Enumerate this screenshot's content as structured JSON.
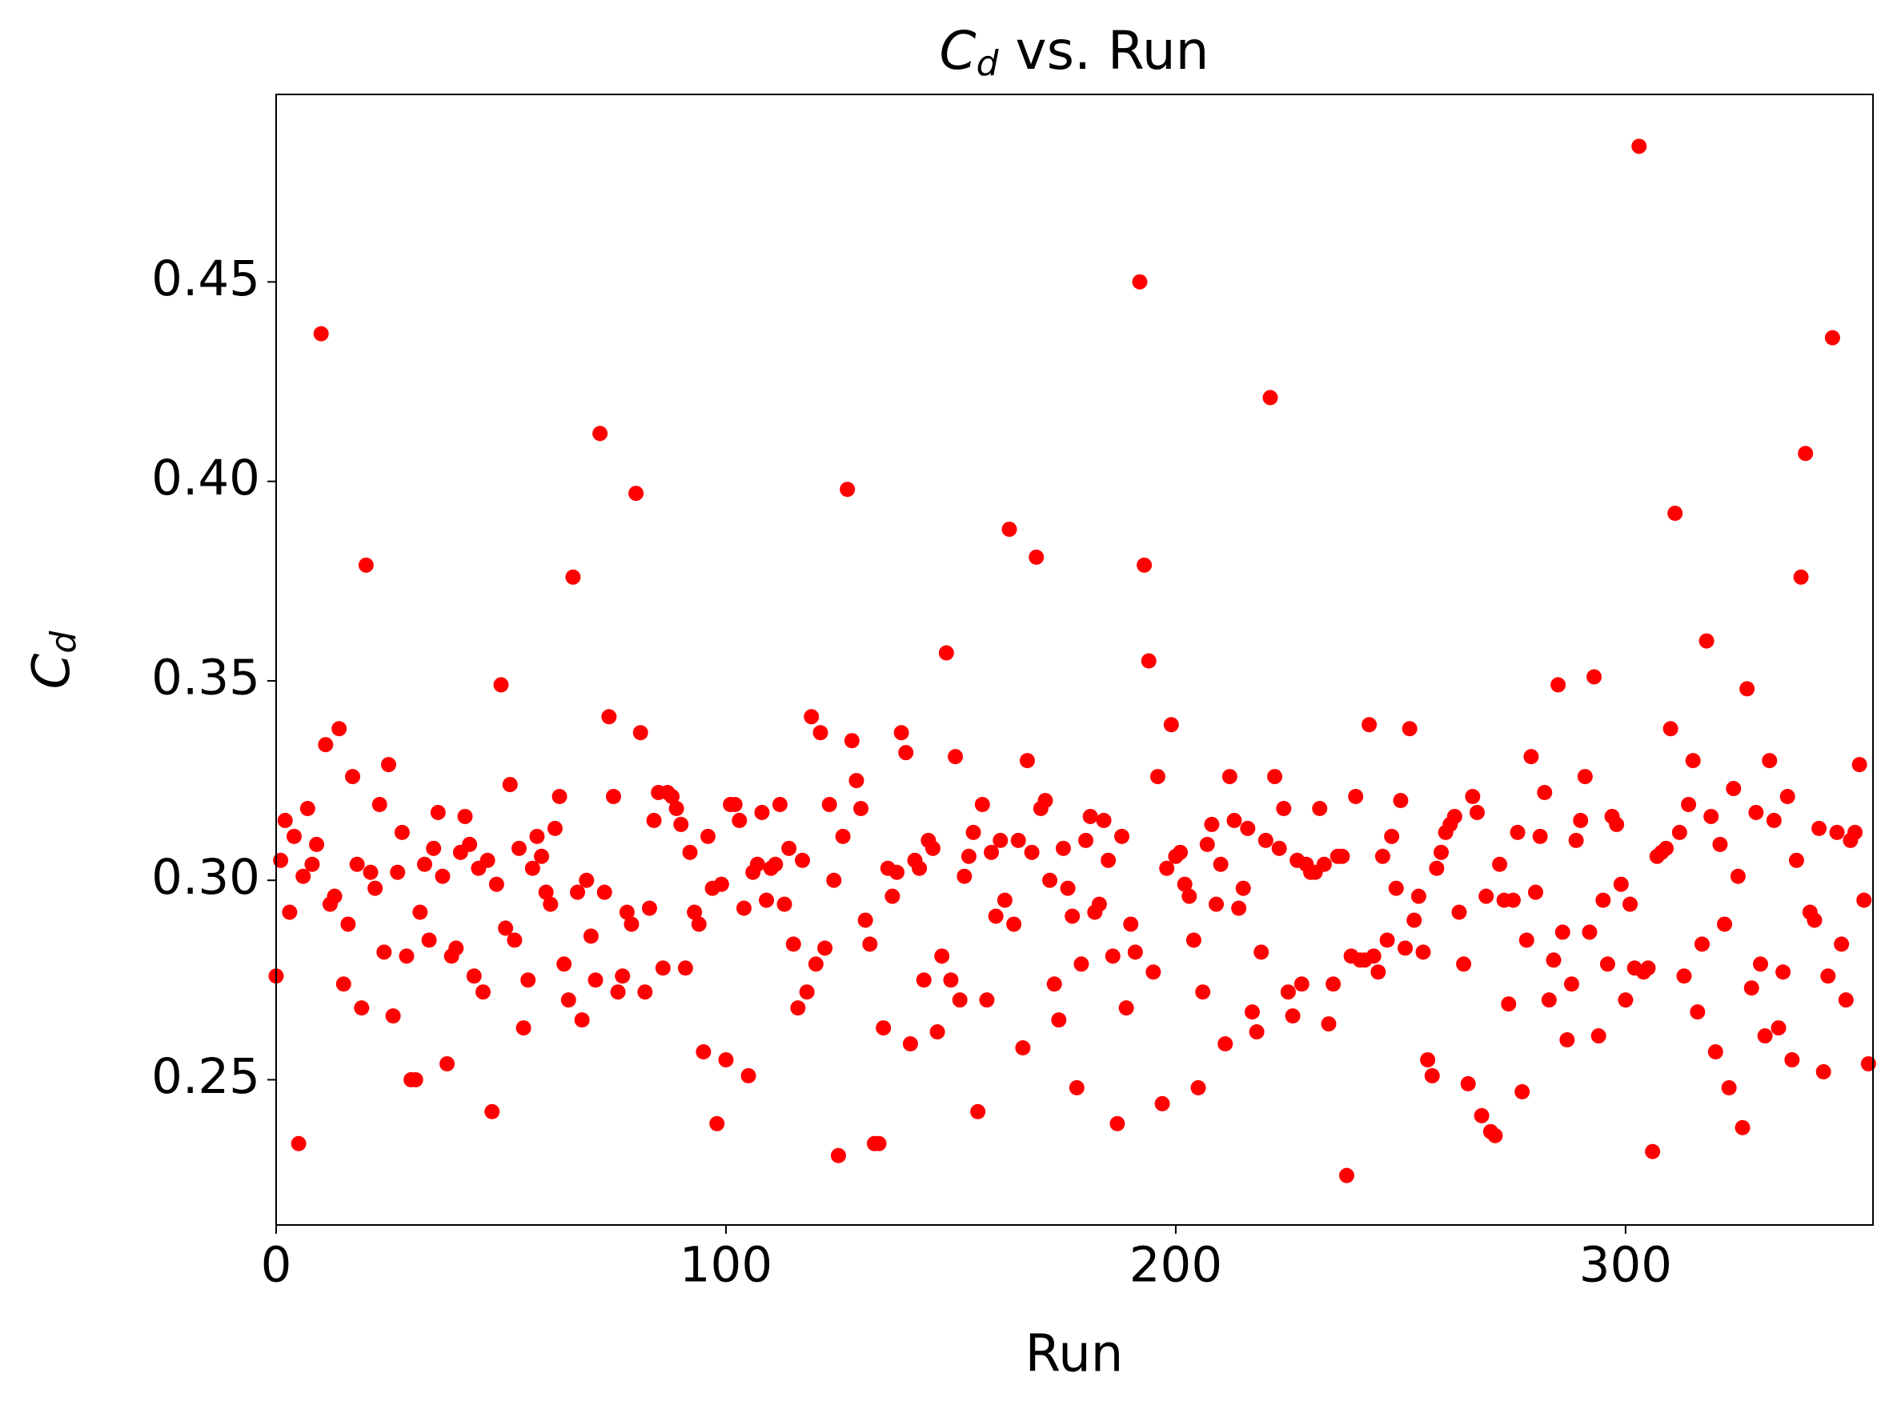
{
  "chart_data": {
    "type": "scatter",
    "title": {
      "symbol": "C",
      "subscript": "d",
      "text": " vs. Run"
    },
    "xlabel": "Run",
    "ylabel": {
      "symbol": "C",
      "subscript": "d"
    },
    "color": "#ff0000",
    "xlim": [
      0,
      355
    ],
    "ylim": [
      0.2136,
      0.497
    ],
    "xticks": [
      0,
      100,
      200,
      300
    ],
    "yticks": [
      0.25,
      {
        "value": 0.3,
        "label": "0.30"
      },
      0.35,
      {
        "value": 0.4,
        "label": "0.40"
      },
      0.45
    ],
    "grid": false,
    "x": [
      0,
      1,
      2,
      3,
      4,
      5,
      6,
      7,
      8,
      9,
      10,
      11,
      12,
      13,
      14,
      15,
      16,
      17,
      18,
      19,
      20,
      21,
      22,
      23,
      24,
      25,
      26,
      27,
      28,
      29,
      30,
      31,
      32,
      33,
      34,
      35,
      36,
      37,
      38,
      39,
      40,
      41,
      42,
      43,
      44,
      45,
      46,
      47,
      48,
      49,
      50,
      51,
      52,
      53,
      54,
      55,
      56,
      57,
      58,
      59,
      60,
      61,
      62,
      63,
      64,
      65,
      66,
      67,
      68,
      69,
      70,
      71,
      72,
      73,
      74,
      75,
      76,
      77,
      78,
      79,
      80,
      81,
      82,
      83,
      84,
      85,
      86,
      87,
      88,
      89,
      90,
      91,
      92,
      93,
      94,
      95,
      96,
      97,
      98,
      99,
      100,
      101,
      102,
      103,
      104,
      105,
      106,
      107,
      108,
      109,
      110,
      111,
      112,
      113,
      114,
      115,
      116,
      117,
      118,
      119,
      120,
      121,
      122,
      123,
      124,
      125,
      126,
      127,
      128,
      129,
      130,
      131,
      132,
      133,
      134,
      135,
      136,
      137,
      138,
      139,
      140,
      141,
      142,
      143,
      144,
      145,
      146,
      147,
      148,
      149,
      150,
      151,
      152,
      153,
      154,
      155,
      156,
      157,
      158,
      159,
      160,
      161,
      162,
      163,
      164,
      165,
      166,
      167,
      168,
      169,
      170,
      171,
      172,
      173,
      174,
      175,
      176,
      177,
      178,
      179,
      180,
      181,
      182,
      183,
      184,
      185,
      186,
      187,
      188,
      189,
      190,
      191,
      192,
      193,
      194,
      195,
      196,
      197,
      198,
      199,
      200,
      201,
      202,
      203,
      204,
      205,
      206,
      207,
      208,
      209,
      210,
      211,
      212,
      213,
      214,
      215,
      216,
      217,
      218,
      219,
      220,
      221,
      222,
      223,
      224,
      225,
      226,
      227,
      228,
      229,
      230,
      231,
      232,
      233,
      234,
      235,
      236,
      237,
      238,
      239,
      240,
      241,
      242,
      243,
      244,
      245,
      246,
      247,
      248,
      249,
      250,
      251,
      252,
      253,
      254,
      255,
      256,
      257,
      258,
      259,
      260,
      261,
      262,
      263,
      264,
      265,
      266,
      267,
      268,
      269,
      270,
      271,
      272,
      273,
      274,
      275,
      276,
      277,
      278,
      279,
      280,
      281,
      282,
      283,
      284,
      285,
      286,
      287,
      288,
      289,
      290,
      291,
      292,
      293,
      294,
      295,
      296,
      297,
      298,
      299,
      300,
      301,
      302,
      303,
      304,
      305,
      306,
      307,
      308,
      309,
      310,
      311,
      312,
      313,
      314,
      315,
      316,
      317,
      318,
      319,
      320,
      321,
      322,
      323,
      324,
      325,
      326,
      327,
      328,
      329,
      330,
      331,
      332,
      333,
      334,
      335,
      336,
      337,
      338,
      339,
      340,
      341,
      342,
      343,
      344,
      345,
      346,
      347,
      348,
      349,
      350,
      351,
      352,
      353,
      354
    ],
    "values": [
      0.276,
      0.305,
      0.315,
      0.292,
      0.311,
      0.234,
      0.301,
      0.318,
      0.304,
      0.309,
      0.437,
      0.334,
      0.294,
      0.296,
      0.338,
      0.274,
      0.289,
      0.326,
      0.304,
      0.268,
      0.379,
      0.302,
      0.298,
      0.319,
      0.282,
      0.329,
      0.266,
      0.302,
      0.312,
      0.281,
      0.25,
      0.25,
      0.292,
      0.304,
      0.285,
      0.308,
      0.317,
      0.301,
      0.254,
      0.281,
      0.283,
      0.307,
      0.316,
      0.309,
      0.276,
      0.303,
      0.272,
      0.305,
      0.242,
      0.299,
      0.349,
      0.288,
      0.324,
      0.285,
      0.308,
      0.263,
      0.275,
      0.303,
      0.311,
      0.306,
      0.297,
      0.294,
      0.313,
      0.321,
      0.279,
      0.27,
      0.376,
      0.297,
      0.265,
      0.3,
      0.286,
      0.275,
      0.412,
      0.297,
      0.341,
      0.321,
      0.272,
      0.276,
      0.292,
      0.289,
      0.397,
      0.337,
      0.272,
      0.293,
      0.315,
      0.322,
      0.278,
      0.322,
      0.321,
      0.318,
      0.314,
      0.278,
      0.307,
      0.292,
      0.289,
      0.257,
      0.311,
      0.298,
      0.239,
      0.299,
      0.255,
      0.319,
      0.319,
      0.315,
      0.293,
      0.251,
      0.302,
      0.304,
      0.317,
      0.295,
      0.303,
      0.304,
      0.319,
      0.294,
      0.308,
      0.284,
      0.268,
      0.305,
      0.272,
      0.341,
      0.279,
      0.337,
      0.283,
      0.319,
      0.3,
      0.231,
      0.311,
      0.398,
      0.335,
      0.325,
      0.318,
      0.29,
      0.284,
      0.234,
      0.234,
      0.263,
      0.303,
      0.296,
      0.302,
      0.337,
      0.332,
      0.259,
      0.305,
      0.303,
      0.275,
      0.31,
      0.308,
      0.262,
      0.281,
      0.357,
      0.275,
      0.331,
      0.27,
      0.301,
      0.306,
      0.312,
      0.242,
      0.319,
      0.27,
      0.307,
      0.291,
      0.31,
      0.295,
      0.388,
      0.289,
      0.31,
      0.258,
      0.33,
      0.307,
      0.381,
      0.318,
      0.32,
      0.3,
      0.274,
      0.265,
      0.308,
      0.298,
      0.291,
      0.248,
      0.279,
      0.31,
      0.316,
      0.292,
      0.294,
      0.315,
      0.305,
      0.281,
      0.239,
      0.311,
      0.268,
      0.289,
      0.282,
      0.45,
      0.379,
      0.355,
      0.277,
      0.326,
      0.244,
      0.303,
      0.339,
      0.306,
      0.307,
      0.299,
      0.296,
      0.285,
      0.248,
      0.272,
      0.309,
      0.314,
      0.294,
      0.304,
      0.259,
      0.326,
      0.315,
      0.293,
      0.298,
      0.313,
      0.267,
      0.262,
      0.282,
      0.31,
      0.421,
      0.326,
      0.308,
      0.318,
      0.272,
      0.266,
      0.305,
      0.274,
      0.304,
      0.302,
      0.302,
      0.318,
      0.304,
      0.264,
      0.274,
      0.306,
      0.306,
      0.226,
      0.281,
      0.321,
      0.28,
      0.28,
      0.339,
      0.281,
      0.277,
      0.306,
      0.285,
      0.311,
      0.298,
      0.32,
      0.283,
      0.338,
      0.29,
      0.296,
      0.282,
      0.255,
      0.251,
      0.303,
      0.307,
      0.312,
      0.314,
      0.316,
      0.292,
      0.279,
      0.249,
      0.321,
      0.317,
      0.241,
      0.296,
      0.237,
      0.236,
      0.304,
      0.295,
      0.269,
      0.295,
      0.312,
      0.247,
      0.285,
      0.331,
      0.297,
      0.311,
      0.322,
      0.27,
      0.28,
      0.349,
      0.287,
      0.26,
      0.274,
      0.31,
      0.315,
      0.326,
      0.287,
      0.351,
      0.261,
      0.295,
      0.279,
      0.316,
      0.314,
      0.299,
      0.27,
      0.294,
      0.278,
      0.484,
      0.277,
      0.278,
      0.232,
      0.306,
      0.307,
      0.308,
      0.338,
      0.392,
      0.312,
      0.276,
      0.319,
      0.33,
      0.267,
      0.284,
      0.36,
      0.316,
      0.257,
      0.309,
      0.289,
      0.248,
      0.323,
      0.301,
      0.238,
      0.348,
      0.273,
      0.317,
      0.279,
      0.261,
      0.33,
      0.315,
      0.263,
      0.277,
      0.321,
      0.255,
      0.305,
      0.376,
      0.407,
      0.292,
      0.29,
      0.313,
      0.252,
      0.276,
      0.436,
      0.312,
      0.284,
      0.27,
      0.31,
      0.312,
      0.329,
      0.295,
      0.254
    ]
  }
}
